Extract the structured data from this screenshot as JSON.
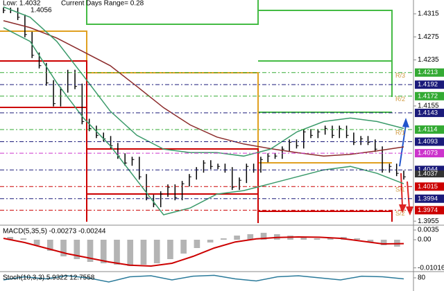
{
  "chart_data": [
    {
      "type": "ohlc",
      "annotations": [
        "Low: 1.4032",
        "Current Days Range= 0.28",
        "1.4056"
      ],
      "ylim": [
        1.3948,
        1.4339
      ],
      "yticks": [
        1.3955,
        1.4155,
        1.4235,
        1.4275,
        1.4315
      ],
      "last": 1.4037,
      "levels": [
        {
          "price": 1.4213,
          "color": "#33aa33",
          "name": "R/3"
        },
        {
          "price": 1.4192,
          "color": "#1a1a7a"
        },
        {
          "price": 1.4172,
          "color": "#33aa33",
          "name": "R/2"
        },
        {
          "price": 1.4143,
          "color": "#1a1a7a"
        },
        {
          "price": 1.4114,
          "color": "#33aa33",
          "name": "R/1"
        },
        {
          "price": 1.4093,
          "color": "#1a1a7a"
        },
        {
          "price": 1.4073,
          "color": "#cc33cc"
        },
        {
          "price": 1.4044,
          "color": "#1a1a7a"
        },
        {
          "price": 1.4015,
          "color": "#cc0000",
          "name": "S/1"
        },
        {
          "price": 1.3994,
          "color": "#1a1a7a"
        },
        {
          "price": 1.3974,
          "color": "#cc0000",
          "name": "S/2"
        }
      ],
      "series": [
        {
          "color": "#000000",
          "style": "bars",
          "values": [
            1.4321,
            1.4321,
            1.4309,
            1.4279,
            1.4243,
            1.4225,
            1.4195,
            1.4159,
            1.4183,
            1.4213,
            1.4189,
            1.4128,
            1.4116,
            1.4104,
            1.4098,
            1.4086,
            1.4068,
            1.4056,
            1.4062,
            1.4032,
            1.3996,
            1.3984,
            1.4002,
            1.4014,
            1.3996,
            1.402,
            1.4032,
            1.4044,
            1.4056,
            1.405,
            1.405,
            1.4044,
            1.4014,
            1.4026,
            1.405,
            1.4044,
            1.4062,
            1.4068,
            1.4068,
            1.408,
            1.4092,
            1.4086,
            1.411,
            1.4104,
            1.411,
            1.4116,
            1.4104,
            1.4116,
            1.4104,
            1.4092,
            1.4098,
            1.4092,
            1.408,
            1.4044,
            1.405,
            1.4038,
            1.4032
          ]
        },
        {
          "color": "#8b2a2a",
          "style": "line",
          "values": [
            1.4303,
            1.4291,
            1.4273,
            1.4249,
            1.4225,
            1.4189,
            1.4152,
            1.4122,
            1.4101,
            1.4089,
            1.4081,
            1.4074,
            1.4068,
            1.4071,
            1.4077,
            1.4084
          ]
        },
        {
          "color": "#3a9a6a",
          "style": "line",
          "values": [
            1.4327,
            1.4309,
            1.4267,
            1.4207,
            1.4146,
            1.4104,
            1.408,
            1.4074,
            1.4074,
            1.4068,
            1.408,
            1.411,
            1.4128,
            1.4134,
            1.4128,
            1.4116
          ]
        },
        {
          "color": "#3a9a6a",
          "style": "line",
          "values": [
            1.4291,
            1.4267,
            1.4195,
            1.4134,
            1.4086,
            1.4026,
            1.3966,
            1.3978,
            1.4002,
            1.4008,
            1.402,
            1.4032,
            1.4044,
            1.405,
            1.4038,
            1.402
          ]
        }
      ]
    },
    {
      "type": "macd",
      "title": "MACD(5,35,5) -0.00273 -0.00244",
      "ylim": [
        -0.0115,
        0.0045
      ],
      "yticks": [
        0.0035,
        {
          "value": 0,
          "label": "0.00"
        },
        -0.01016
      ],
      "series": [
        {
          "color": "#b4b4b4",
          "style": "histogram",
          "values": [
            0.001,
            0.0005,
            -0.002,
            -0.004,
            -0.006,
            -0.007,
            -0.008,
            -0.0085,
            -0.009,
            -0.0095,
            -0.009,
            -0.0085,
            -0.007,
            -0.005,
            -0.003,
            -0.001,
            0.0005,
            0.0015,
            0.002,
            0.0025,
            0.002,
            0.0015,
            0.001,
            0.0005,
            0.0008,
            0.001,
            0.0005,
            -0.001,
            -0.002,
            -0.0025
          ]
        },
        {
          "color": "#cc0000",
          "style": "line",
          "values": [
            0.0005,
            -0.001,
            -0.003,
            -0.005,
            -0.0065,
            -0.008,
            -0.0092,
            -0.0095,
            -0.0085,
            -0.006,
            -0.003,
            -0.0008,
            0.0003,
            0.0008,
            0.001,
            0.0009,
            0.0005,
            -0.0005,
            -0.0015,
            -0.0014
          ]
        }
      ]
    },
    {
      "type": "line",
      "title": "Stoch(10,3,3) 5.9322 12.7558",
      "ylim": [
        0,
        100
      ],
      "yticks": [
        80
      ],
      "series": [
        {
          "color": "#2a7a9a",
          "style": "line",
          "values": [
            70,
            85,
            75,
            90,
            80,
            60,
            85,
            90,
            70,
            88,
            92,
            75,
            65,
            85,
            90,
            80,
            70,
            88,
            85,
            75
          ]
        }
      ]
    }
  ]
}
